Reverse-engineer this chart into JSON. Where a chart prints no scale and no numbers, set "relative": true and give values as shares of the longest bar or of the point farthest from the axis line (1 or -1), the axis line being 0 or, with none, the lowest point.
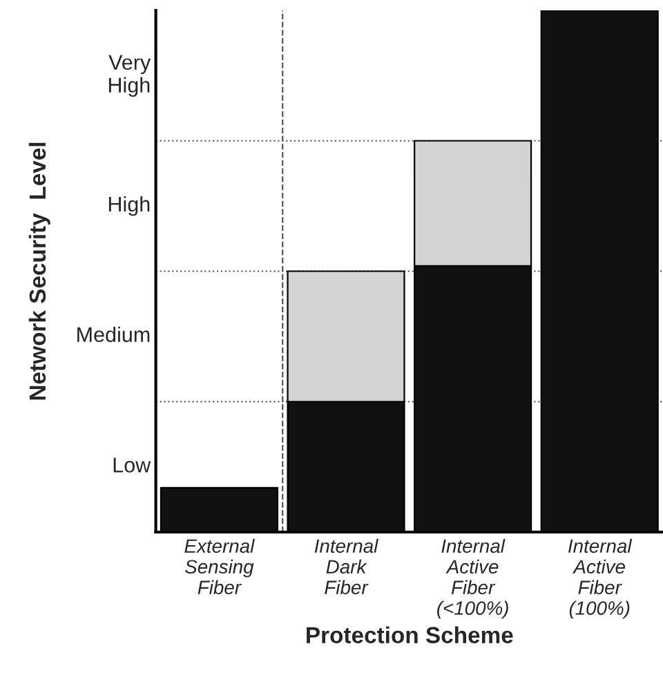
{
  "chart_data": {
    "type": "bar",
    "stacked": true,
    "relative": true,
    "xlabel": "Protection Scheme",
    "ylabel": "Network Security  Level",
    "categories": [
      "External\nSensing\nFiber",
      "Internal\nDark\nFiber",
      "Internal\nActive\nFiber\n(<100%)",
      "Internal\nActive\nFiber\n(100%)"
    ],
    "series": [
      {
        "color": "#111111",
        "values": [
          0.085,
          0.25,
          0.51,
          1.0
        ]
      },
      {
        "color": "#d3d3d3",
        "values": [
          null,
          0.25,
          0.24,
          null
        ]
      }
    ],
    "annotations": [
      "Low",
      "Medium",
      "High",
      "Very\nHigh"
    ],
    "grid": "y"
  }
}
